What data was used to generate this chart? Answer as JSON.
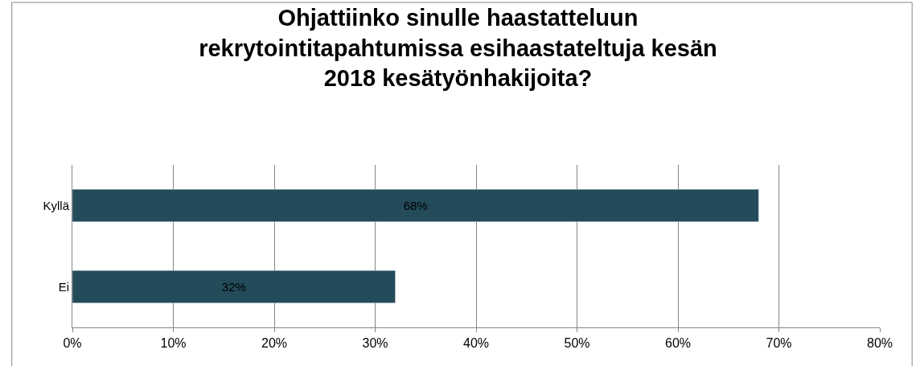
{
  "chart_data": {
    "type": "bar",
    "orientation": "horizontal",
    "title": "Ohjattiinko sinulle haastatteluun\nrekrytointitapahtumissa esihaastateltuja kesän\n2018 kesätyönhakijoita?",
    "categories": [
      "Kyllä",
      "Ei"
    ],
    "values": [
      68,
      32
    ],
    "value_labels": [
      "68%",
      "32%"
    ],
    "color": "#234b5a",
    "xlim": [
      0,
      80
    ],
    "xticks": [
      {
        "value": 0,
        "label": "0%"
      },
      {
        "value": 10,
        "label": "10%"
      },
      {
        "value": 20,
        "label": "20%"
      },
      {
        "value": 30,
        "label": "30%"
      },
      {
        "value": 40,
        "label": "40%"
      },
      {
        "value": 50,
        "label": "50%"
      },
      {
        "value": 60,
        "label": "60%"
      },
      {
        "value": 70,
        "label": "70%"
      },
      {
        "value": 80,
        "label": "80%"
      }
    ],
    "grid": "x",
    "legend": false
  }
}
